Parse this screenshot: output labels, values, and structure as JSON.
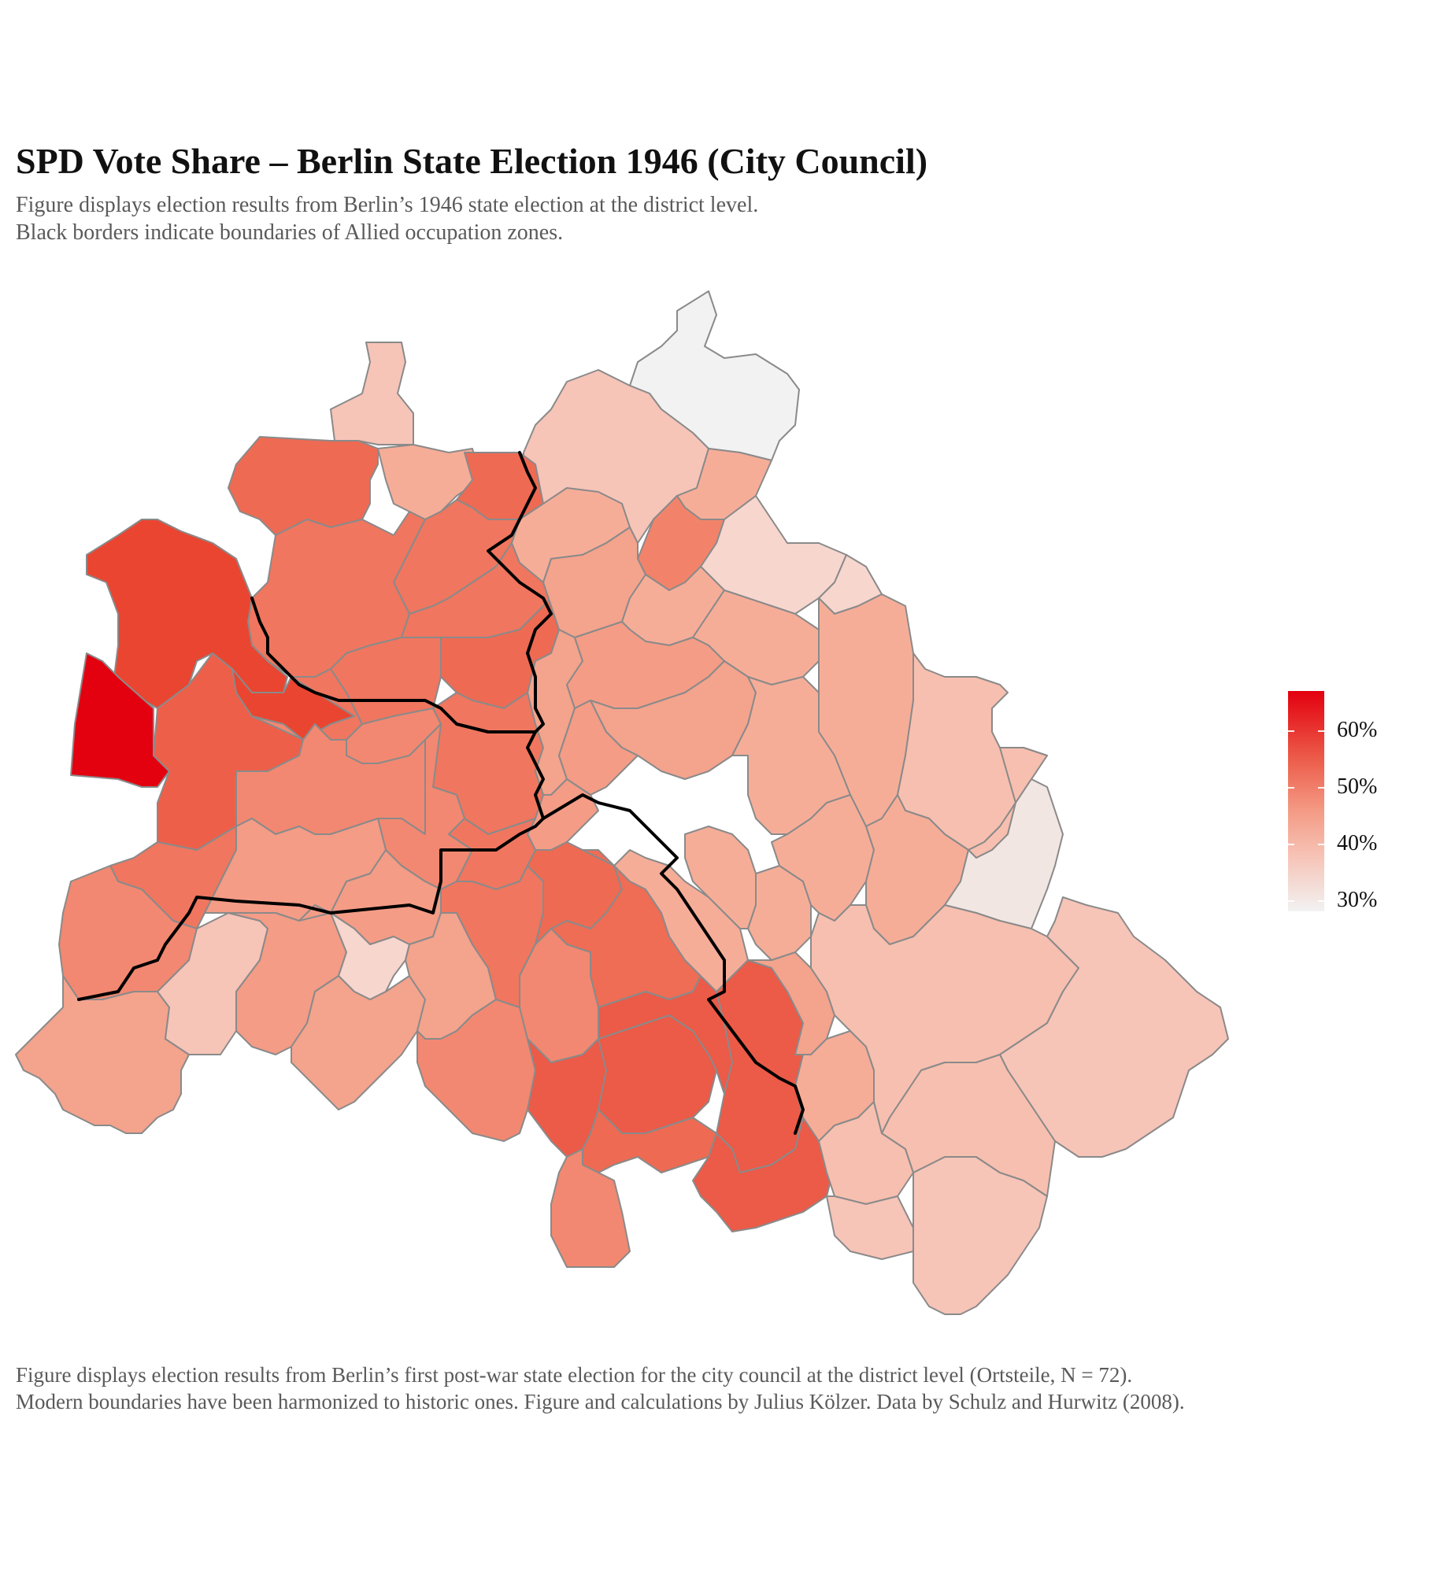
{
  "title": "SPD Vote Share – Berlin State Election 1946 (City Council)",
  "subtitle": [
    "Figure displays election results from Berlin’s 1946 state election at the district level.",
    "Black borders indicate boundaries of Allied occupation zones."
  ],
  "caption": [
    "Figure displays election results from Berlin’s first post-war state election for the city council at the district level (Ortsteile, N = 72).",
    "Modern boundaries have been harmonized to historic ones. Figure and calculations by Julius Kölzer. Data by Schulz and Hurwitz (2008)."
  ],
  "legend": {
    "min": 28,
    "max": 68,
    "ticks": [
      {
        "value": 60,
        "label": "60%"
      },
      {
        "value": 50,
        "label": "50%"
      },
      {
        "value": 40,
        "label": "40%"
      },
      {
        "value": 30,
        "label": "30%"
      }
    ],
    "colors": {
      "low": "#f2f2f2",
      "mid": "#f49c86",
      "high": "#e3000f"
    }
  },
  "map": {
    "border_color": "#8a8a8a",
    "zone_border_color": "#000000",
    "districts_shown": 72
  }
}
